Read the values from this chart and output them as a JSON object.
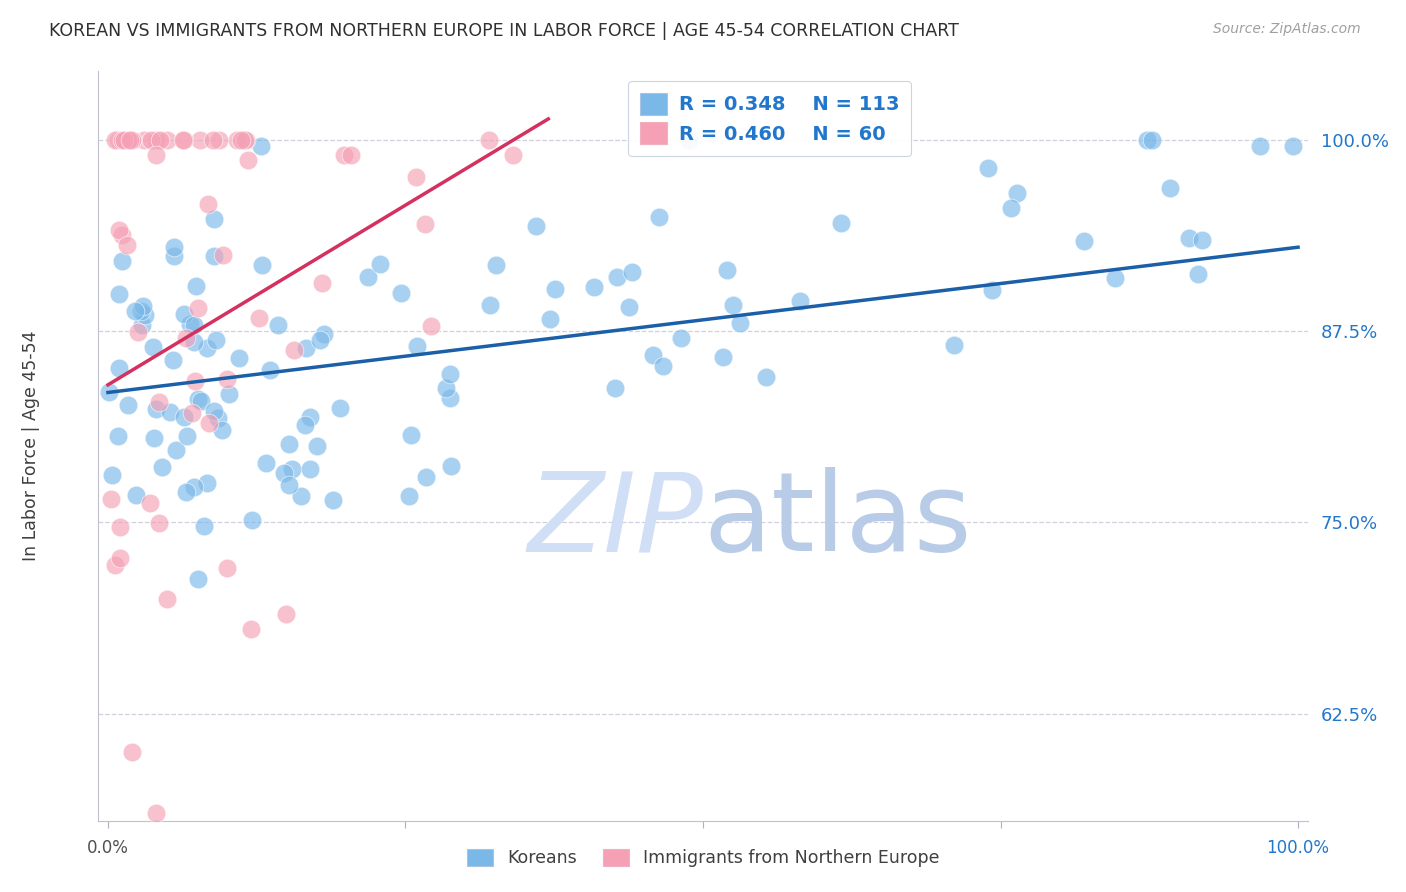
{
  "title": "KOREAN VS IMMIGRANTS FROM NORTHERN EUROPE IN LABOR FORCE | AGE 45-54 CORRELATION CHART",
  "source": "Source: ZipAtlas.com",
  "ylabel": "In Labor Force | Age 45-54",
  "yticks": [
    0.625,
    0.75,
    0.875,
    1.0
  ],
  "ytick_labels": [
    "62.5%",
    "75.0%",
    "87.5%",
    "100.0%"
  ],
  "ylim": [
    0.555,
    1.045
  ],
  "xlim": [
    -0.008,
    1.008
  ],
  "blue_R": 0.348,
  "blue_N": 113,
  "pink_R": 0.46,
  "pink_N": 60,
  "blue_color": "#7ab8e8",
  "pink_color": "#f5a0b5",
  "blue_line_color": "#1a5fa8",
  "pink_line_color": "#d43060",
  "legend_text_color": "#2277cc",
  "watermark_color": "#d0dff5",
  "background_color": "#ffffff",
  "grid_color": "#d0d0e0",
  "title_color": "#303030",
  "source_color": "#a0a0a0",
  "blue_intercept": 0.835,
  "blue_slope": 0.095,
  "pink_intercept": 0.84,
  "pink_slope": 0.47,
  "pink_line_xmax": 0.37
}
